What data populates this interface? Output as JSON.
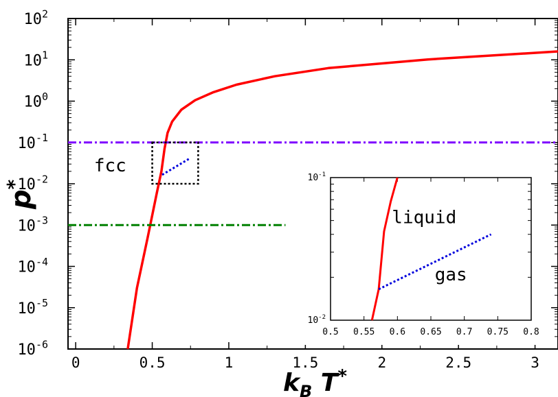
{
  "chart_data": [
    {
      "type": "line",
      "xlabel": "k",
      "xlabel_sub": "B",
      "xlabel_rest": " T",
      "xlabel_sup": "*",
      "ylabel": "p",
      "ylabel_sup": "*",
      "xlim": [
        -0.05,
        3.15
      ],
      "ylim": [
        1e-06,
        100
      ],
      "yscale": "log",
      "xticks": [
        "0",
        "0.5",
        "1",
        "1.5",
        "2",
        "2.5",
        "3"
      ],
      "xtick_values": [
        0,
        0.5,
        1,
        1.5,
        2,
        2.5,
        3
      ],
      "yticks": [
        {
          "base": "10",
          "exp": "2",
          "value": 100
        },
        {
          "base": "10",
          "exp": "1",
          "value": 10
        },
        {
          "base": "10",
          "exp": "0",
          "value": 1
        },
        {
          "base": "10",
          "exp": "-1",
          "value": 0.1
        },
        {
          "base": "10",
          "exp": "-2",
          "value": 0.01
        },
        {
          "base": "10",
          "exp": "-3",
          "value": 0.001
        },
        {
          "base": "10",
          "exp": "-4",
          "value": 0.0001
        },
        {
          "base": "10",
          "exp": "-5",
          "value": 1e-05
        },
        {
          "base": "10",
          "exp": "-6",
          "value": 1e-06
        }
      ],
      "series": [
        {
          "color": "#ff0000",
          "style": "solid",
          "x": [
            0.34,
            0.4,
            0.47,
            0.53,
            0.56,
            0.58,
            0.6,
            0.63,
            0.69,
            0.78,
            0.9,
            1.05,
            1.3,
            1.65,
            2.3,
            3.15
          ],
          "y": [
            1e-06,
            3e-05,
            0.0005,
            0.006,
            0.02,
            0.07,
            0.17,
            0.32,
            0.62,
            1.05,
            1.65,
            2.5,
            4,
            6.3,
            10.2,
            16
          ]
        },
        {
          "color": "#0000dd",
          "style": "dotted",
          "x": [
            0.565,
            0.74
          ],
          "y": [
            0.0165,
            0.04
          ]
        },
        {
          "color": "#7f00ff",
          "style": "dashdot",
          "x": [
            -0.05,
            3.15
          ],
          "y": [
            0.1,
            0.1
          ]
        },
        {
          "color": "#008000",
          "style": "dashdot",
          "x": [
            -0.05,
            1.37
          ],
          "y": [
            0.001,
            0.001
          ]
        }
      ],
      "zoom_box": {
        "x": [
          0.5,
          0.8
        ],
        "y": [
          0.01,
          0.1
        ]
      },
      "annotations": [
        {
          "text": "fcc",
          "x": 0.12,
          "y": 0.02
        }
      ]
    },
    {
      "type": "line",
      "xlim": [
        0.5,
        0.8
      ],
      "ylim": [
        0.01,
        0.1
      ],
      "yscale": "log",
      "xticks": [
        "0.5",
        "0.55",
        "0.6",
        "0.65",
        "0.7",
        "0.75",
        "0.8"
      ],
      "xtick_values": [
        0.5,
        0.55,
        0.6,
        0.65,
        0.7,
        0.75,
        0.8
      ],
      "yticks": [
        {
          "base": "10",
          "exp": "-1",
          "value": 0.1
        },
        {
          "base": "10",
          "exp": "-2",
          "value": 0.01
        }
      ],
      "series": [
        {
          "color": "#ff0000",
          "style": "solid",
          "x": [
            0.562,
            0.572,
            0.58,
            0.59,
            0.6
          ],
          "y": [
            0.01,
            0.0165,
            0.042,
            0.068,
            0.1
          ]
        },
        {
          "color": "#0000dd",
          "style": "dotted",
          "x": [
            0.572,
            0.74
          ],
          "y": [
            0.0165,
            0.04
          ]
        }
      ],
      "annotations": [
        {
          "text": "liquid",
          "x": 0.64,
          "y": 0.048
        },
        {
          "text": "gas",
          "x": 0.68,
          "y": 0.019
        }
      ]
    }
  ]
}
